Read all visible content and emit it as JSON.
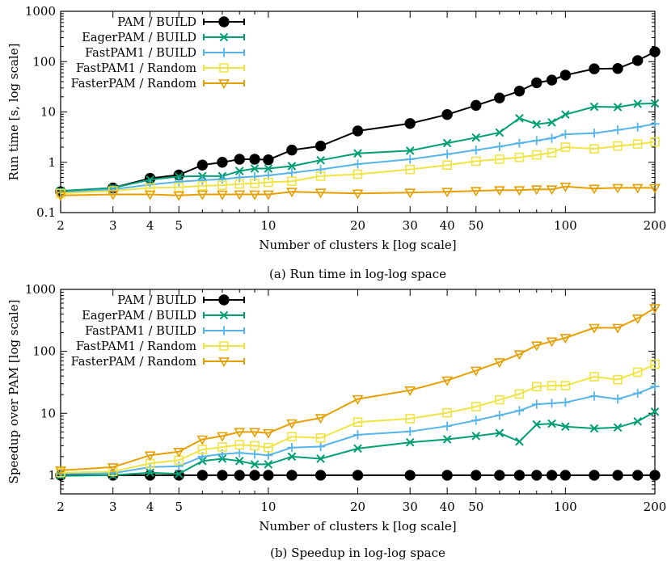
{
  "chart_data": [
    {
      "type": "line",
      "caption": "(a) Run time in log-log space",
      "xlabel": "Number of clusters k [log scale]",
      "ylabel": "Run time [s, log scale]",
      "xscale": "log",
      "yscale": "log",
      "xlim": [
        2,
        200
      ],
      "ylim": [
        0.1,
        1000
      ],
      "x_ticks": [
        2,
        3,
        4,
        5,
        10,
        20,
        30,
        40,
        50,
        100,
        200
      ],
      "x_tick_labels": [
        "2",
        "3",
        "4",
        "5",
        "10",
        "20",
        "30",
        "40",
        "50",
        "100",
        "200"
      ],
      "y_ticks": [
        0.1,
        1,
        10,
        100,
        1000
      ],
      "y_tick_labels": [
        "0.1",
        "1",
        "10",
        "100",
        "1000"
      ],
      "legend_position": "top-left",
      "series": [
        {
          "name": "PAM / BUILD",
          "color": "#000000",
          "marker": "filled-circle",
          "x": [
            2,
            3,
            4,
            5,
            6,
            7,
            8,
            9,
            10,
            12,
            15,
            20,
            30,
            40,
            50,
            60,
            70,
            80,
            90,
            100,
            125,
            150,
            175,
            200
          ],
          "y": [
            0.26,
            0.31,
            0.48,
            0.56,
            0.88,
            1.0,
            1.15,
            1.15,
            1.12,
            1.75,
            2.1,
            4.2,
            5.9,
            8.9,
            13.5,
            19,
            26,
            38,
            43,
            54,
            72,
            73,
            105,
            157
          ]
        },
        {
          "name": "EagerPAM / BUILD",
          "color": "#009e73",
          "marker": "x",
          "x": [
            2,
            3,
            4,
            5,
            6,
            7,
            8,
            9,
            10,
            12,
            15,
            20,
            30,
            40,
            50,
            60,
            70,
            80,
            90,
            100,
            125,
            150,
            175,
            200
          ],
          "y": [
            0.27,
            0.31,
            0.45,
            0.52,
            0.53,
            0.53,
            0.67,
            0.75,
            0.75,
            0.84,
            1.1,
            1.5,
            1.7,
            2.4,
            3.1,
            3.9,
            7.5,
            5.7,
            6.2,
            8.9,
            12.7,
            12.5,
            14.5,
            14.8
          ]
        },
        {
          "name": "FastPAM1 / BUILD",
          "color": "#56b4e9",
          "marker": "plus",
          "x": [
            2,
            3,
            4,
            5,
            6,
            7,
            8,
            9,
            10,
            12,
            15,
            20,
            30,
            40,
            50,
            60,
            70,
            80,
            90,
            100,
            125,
            150,
            175,
            200
          ],
          "y": [
            0.25,
            0.29,
            0.36,
            0.41,
            0.44,
            0.46,
            0.5,
            0.52,
            0.55,
            0.62,
            0.72,
            0.92,
            1.15,
            1.45,
            1.75,
            2.05,
            2.4,
            2.7,
            3.0,
            3.6,
            3.8,
            4.4,
            5.0,
            5.8
          ]
        },
        {
          "name": "FastPAM1 / Random",
          "color": "#f0e442",
          "marker": "open-square",
          "x": [
            2,
            3,
            4,
            5,
            6,
            7,
            8,
            9,
            10,
            12,
            15,
            20,
            30,
            40,
            50,
            60,
            70,
            80,
            90,
            100,
            125,
            150,
            175,
            200
          ],
          "y": [
            0.24,
            0.27,
            0.31,
            0.32,
            0.34,
            0.35,
            0.37,
            0.38,
            0.4,
            0.42,
            0.53,
            0.58,
            0.72,
            0.88,
            1.05,
            1.15,
            1.25,
            1.4,
            1.55,
            2.0,
            1.85,
            2.1,
            2.3,
            2.55
          ]
        },
        {
          "name": "FasterPAM / Random",
          "color": "#e69f00",
          "marker": "open-triangle-down",
          "x": [
            2,
            3,
            4,
            5,
            6,
            7,
            8,
            9,
            10,
            12,
            15,
            20,
            30,
            40,
            50,
            60,
            70,
            80,
            90,
            100,
            125,
            150,
            175,
            200
          ],
          "y": [
            0.22,
            0.23,
            0.23,
            0.22,
            0.23,
            0.23,
            0.23,
            0.23,
            0.23,
            0.26,
            0.25,
            0.24,
            0.25,
            0.26,
            0.27,
            0.28,
            0.28,
            0.29,
            0.29,
            0.33,
            0.3,
            0.31,
            0.31,
            0.31
          ]
        }
      ]
    },
    {
      "type": "line",
      "caption": "(b) Speedup in log-log space",
      "xlabel": "Number of clusters k [log scale]",
      "ylabel": "Speedup over PAM [log scale]",
      "xscale": "log",
      "yscale": "log",
      "xlim": [
        2,
        200
      ],
      "ylim": [
        0.5,
        1000
      ],
      "x_ticks": [
        2,
        3,
        4,
        5,
        10,
        20,
        30,
        40,
        50,
        100,
        200
      ],
      "x_tick_labels": [
        "2",
        "3",
        "4",
        "5",
        "10",
        "20",
        "30",
        "40",
        "50",
        "100",
        "200"
      ],
      "y_ticks": [
        1,
        10,
        100,
        1000
      ],
      "y_tick_labels": [
        "1",
        "10",
        "100",
        "1000"
      ],
      "legend_position": "top-left",
      "series": [
        {
          "name": "PAM / BUILD",
          "color": "#000000",
          "marker": "filled-circle",
          "x": [
            2,
            3,
            4,
            5,
            6,
            7,
            8,
            9,
            10,
            12,
            15,
            20,
            30,
            40,
            50,
            60,
            70,
            80,
            90,
            100,
            125,
            150,
            175,
            200
          ],
          "y": [
            1,
            1,
            1,
            1,
            1,
            1,
            1,
            1,
            1,
            1,
            1,
            1,
            1,
            1,
            1,
            1,
            1,
            1,
            1,
            1,
            1,
            1,
            1,
            1
          ]
        },
        {
          "name": "EagerPAM / BUILD",
          "color": "#009e73",
          "marker": "x",
          "x": [
            2,
            3,
            4,
            5,
            6,
            7,
            8,
            9,
            10,
            12,
            15,
            20,
            30,
            40,
            50,
            60,
            70,
            80,
            90,
            100,
            125,
            150,
            175,
            200
          ],
          "y": [
            0.98,
            1.0,
            1.1,
            1.05,
            1.7,
            1.85,
            1.7,
            1.5,
            1.5,
            2.0,
            1.85,
            2.7,
            3.4,
            3.8,
            4.3,
            4.8,
            3.5,
            6.6,
            6.8,
            6.1,
            5.7,
            5.9,
            7.4,
            10.6
          ]
        },
        {
          "name": "FastPAM1 / BUILD",
          "color": "#56b4e9",
          "marker": "plus",
          "x": [
            2,
            3,
            4,
            5,
            6,
            7,
            8,
            9,
            10,
            12,
            15,
            20,
            30,
            40,
            50,
            60,
            70,
            80,
            90,
            100,
            125,
            150,
            175,
            200
          ],
          "y": [
            1.05,
            1.08,
            1.35,
            1.4,
            2.0,
            2.2,
            2.3,
            2.2,
            2.1,
            2.8,
            2.9,
            4.5,
            5.1,
            6.2,
            7.7,
            9.3,
            11,
            14,
            14.5,
            15,
            19,
            17,
            21,
            27
          ]
        },
        {
          "name": "FastPAM1 / Random",
          "color": "#f0e442",
          "marker": "open-square",
          "x": [
            2,
            3,
            4,
            5,
            6,
            7,
            8,
            9,
            10,
            12,
            15,
            20,
            30,
            40,
            50,
            60,
            70,
            80,
            90,
            100,
            125,
            150,
            175,
            200
          ],
          "y": [
            1.1,
            1.15,
            1.55,
            1.75,
            2.6,
            2.85,
            3.1,
            3.0,
            2.8,
            4.2,
            4.0,
            7.2,
            8.2,
            10.2,
            12.8,
            16.5,
            20.5,
            27,
            28,
            28,
            39,
            35,
            46,
            62
          ]
        },
        {
          "name": "FasterPAM / Random",
          "color": "#e69f00",
          "marker": "open-triangle-down",
          "x": [
            2,
            3,
            4,
            5,
            6,
            7,
            8,
            9,
            10,
            12,
            15,
            20,
            30,
            40,
            50,
            60,
            70,
            80,
            90,
            100,
            125,
            150,
            175,
            200
          ],
          "y": [
            1.2,
            1.35,
            2.1,
            2.4,
            3.8,
            4.3,
            5.0,
            5.0,
            4.8,
            6.9,
            8.4,
            17,
            23.5,
            34,
            49,
            67,
            90,
            125,
            145,
            165,
            240,
            240,
            340,
            500
          ]
        }
      ]
    }
  ]
}
